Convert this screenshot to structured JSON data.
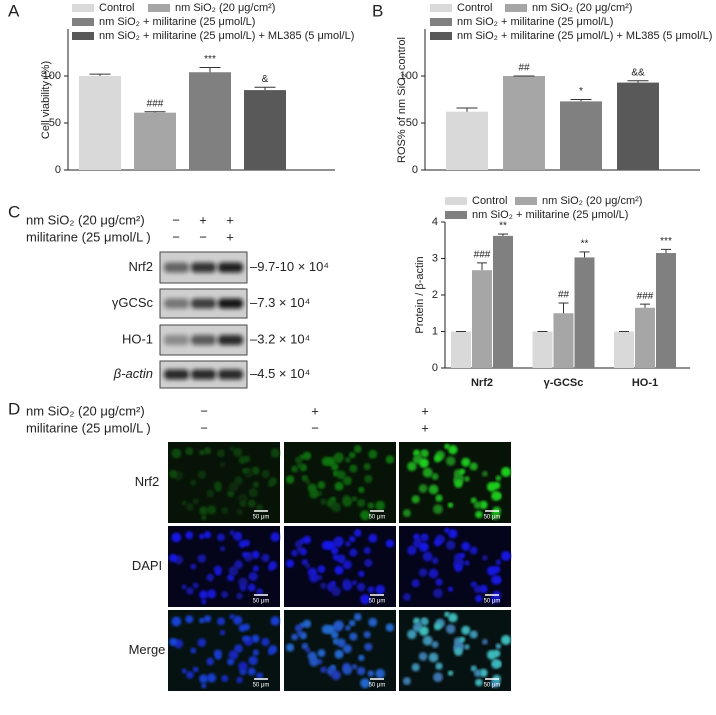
{
  "chart_data": [
    {
      "type": "bar",
      "panel": "A",
      "ylabel": "Cell viability (%)",
      "ylim": [
        0,
        150
      ],
      "yticks": [
        0,
        50,
        100
      ],
      "series": [
        {
          "name": "Control",
          "color": "#d9d9d9",
          "values": [
            100
          ],
          "errors": [
            2
          ]
        },
        {
          "name": "nm SiO₂ (20 μg/cm²)",
          "color": "#a6a6a6",
          "values": [
            61
          ],
          "errors": [
            1
          ],
          "annotations": [
            "###"
          ]
        },
        {
          "name": "nm SiO₂ + militarine (25 μmol/L)",
          "color": "#808080",
          "values": [
            104
          ],
          "errors": [
            5
          ],
          "annotations": [
            "***"
          ]
        },
        {
          "name": "nm SiO₂ + militarine (25 μmol/L) + ML385 (5 μmol/L)",
          "color": "#595959",
          "values": [
            85
          ],
          "errors": [
            3
          ],
          "annotations": [
            "&"
          ]
        }
      ]
    },
    {
      "type": "bar",
      "panel": "B",
      "ylabel": "ROS% of nm SiO₂ control",
      "ylim": [
        0,
        150
      ],
      "yticks": [
        0,
        50,
        100
      ],
      "series": [
        {
          "name": "Control",
          "color": "#d9d9d9",
          "values": [
            62
          ],
          "errors": [
            4
          ]
        },
        {
          "name": "nm SiO₂ (20 μg/cm²)",
          "color": "#a6a6a6",
          "values": [
            100
          ],
          "errors": [
            0
          ],
          "annotations": [
            "##"
          ]
        },
        {
          "name": "nm SiO₂ + militarine (25 μmol/L)",
          "color": "#808080",
          "values": [
            73
          ],
          "errors": [
            2
          ],
          "annotations": [
            "*"
          ]
        },
        {
          "name": "nm SiO₂ + militarine (25 μmol/L) + ML385 (5 μmol/L)",
          "color": "#595959",
          "values": [
            93
          ],
          "errors": [
            2
          ],
          "annotations": [
            "&&"
          ]
        }
      ]
    },
    {
      "type": "bar",
      "ylabel": "Protein / β-actin",
      "ylim": [
        0,
        4
      ],
      "yticks": [
        0,
        1,
        2,
        3,
        4
      ],
      "categories": [
        "Nrf2",
        "γ-GCSc",
        "HO-1"
      ],
      "series": [
        {
          "name": "Control",
          "color": "#d9d9d9",
          "values": [
            1,
            1,
            1
          ],
          "errors": [
            0,
            0,
            0
          ]
        },
        {
          "name": "nm SiO₂ (20 μg/cm²)",
          "color": "#a6a6a6",
          "values": [
            2.68,
            1.5,
            1.65
          ],
          "errors": [
            0.2,
            0.28,
            0.1
          ],
          "annotations": [
            "###",
            "##",
            "###"
          ]
        },
        {
          "name": "nm SiO₂ + militarine (25 μmol/L)",
          "color": "#808080",
          "values": [
            3.62,
            3.03,
            3.15
          ],
          "errors": [
            0.05,
            0.15,
            0.1
          ],
          "annotations": [
            "**",
            "**",
            "***"
          ]
        }
      ]
    }
  ],
  "blot": {
    "panel": "C",
    "treatments": [
      {
        "label": "nm SiO₂  (20 μg/cm²)",
        "signs": [
          "−",
          "+",
          "+"
        ]
      },
      {
        "label": "militarine (25 μmol/L )",
        "signs": [
          "−",
          "−",
          "+"
        ]
      }
    ],
    "bands": [
      {
        "label": "Nrf2",
        "size": "–9.7-10 × 10⁴"
      },
      {
        "label": "γGCSc",
        "size": "–7.3 × 10⁴"
      },
      {
        "label": "HO-1",
        "size": "–3.2 × 10⁴"
      },
      {
        "label": "β-actin",
        "size": "–4.5 × 10⁴"
      }
    ]
  },
  "micrographs": {
    "panel": "D",
    "treatments": [
      {
        "label": "nm SiO₂  (20 μg/cm²)",
        "signs": [
          "−",
          "+",
          "+"
        ]
      },
      {
        "label": "militarine (25 μmol/L )",
        "signs": [
          "−",
          "−",
          "+"
        ]
      }
    ],
    "rows": [
      "Nrf2",
      "DAPI",
      "Merge"
    ],
    "scale_bar": "50 μm"
  }
}
